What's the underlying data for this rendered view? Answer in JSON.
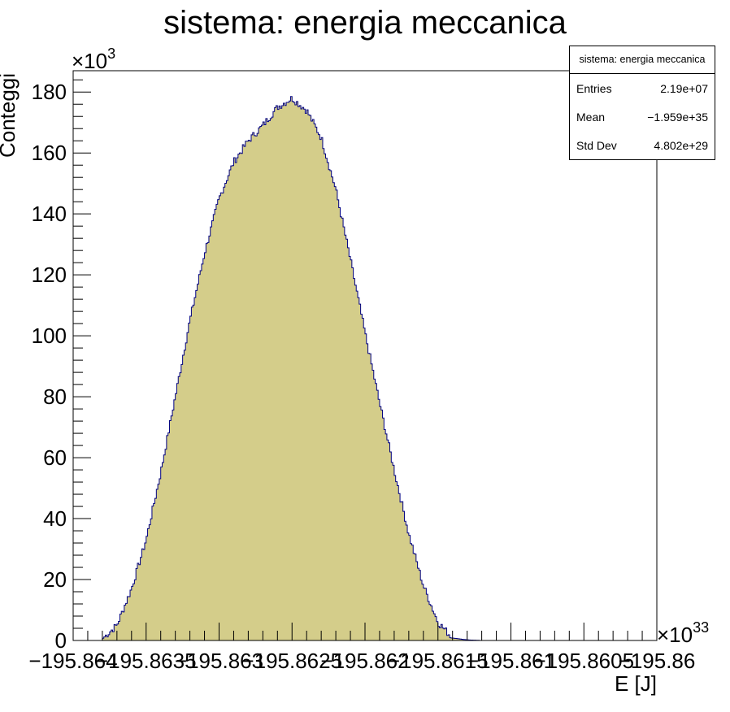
{
  "chart_data": {
    "type": "bar",
    "title": "sistema: energia meccanica",
    "xlabel": "E [J]",
    "ylabel": "Conteggi",
    "x_multiplier": "×10",
    "x_exponent": "33",
    "y_multiplier": "×10",
    "y_exponent": "3",
    "x_tick_labels": [
      "−195.864",
      "−195.8635",
      "−195.863",
      "−195.8625",
      "−195.862",
      "−195.8615",
      "−195.861",
      "−195.8605",
      "−195.86"
    ],
    "y_tick_labels": [
      "0",
      "20",
      "40",
      "60",
      "80",
      "100",
      "120",
      "140",
      "160",
      "180"
    ],
    "xlim": [
      -195.864,
      -195.86
    ],
    "ylim": [
      0,
      187
    ],
    "grid": false,
    "fill_color": "#d4cd8a",
    "line_color": "#000080",
    "bins_x": [
      -195.8638,
      -195.8637,
      -195.8636,
      -195.8635,
      -195.8634,
      -195.8633,
      -195.8632,
      -195.8631,
      -195.863,
      -195.8629,
      -195.8628,
      -195.8627,
      -195.8626,
      -195.8625,
      -195.8624,
      -195.8623,
      -195.8622,
      -195.8621,
      -195.862,
      -195.8619,
      -195.8618,
      -195.8617,
      -195.8616,
      -195.8615,
      -195.8614,
      -195.8613,
      -195.8612
    ],
    "bins_y": [
      0.5,
      5,
      17,
      33,
      55,
      80,
      105,
      127,
      145,
      157,
      164,
      169,
      175,
      178,
      174,
      165,
      148,
      125,
      101,
      78,
      56,
      35,
      18,
      6,
      0.8,
      0.2,
      0
    ],
    "stats_box": {
      "title": "sistema: energia meccanica",
      "entries_label": "Entries",
      "entries_value": "2.19e+07",
      "mean_label": "Mean",
      "mean_value": "−1.959e+35",
      "stddev_label": "Std Dev",
      "stddev_value": "4.802e+29"
    }
  }
}
